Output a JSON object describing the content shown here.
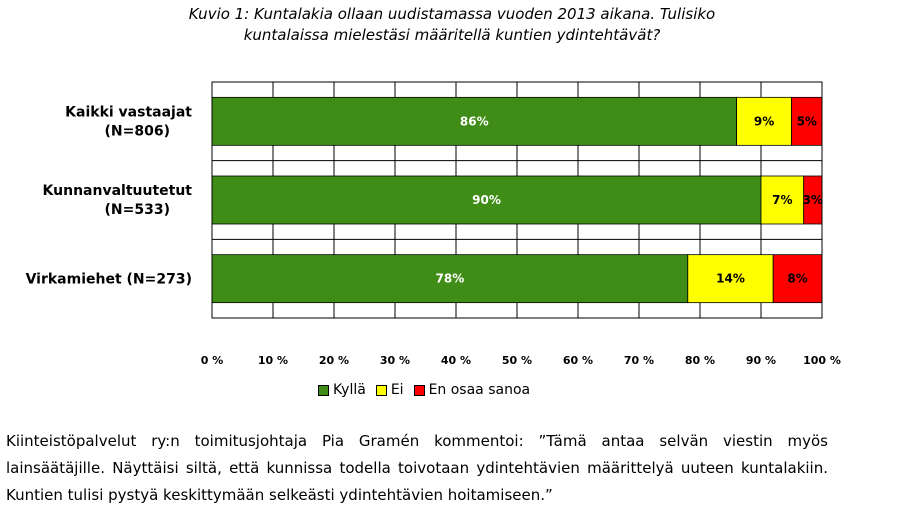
{
  "chart_data": {
    "type": "bar",
    "orientation": "horizontal",
    "stacked": true,
    "title_lines": [
      "Kuvio 1: Kuntalakia ollaan uudistamassa vuoden 2013 aikana. Tulisiko",
      "kuntalaissa mielestäsi määritellä kuntien ydintehtävät?"
    ],
    "categories": [
      {
        "line1": "Kaikki vastaajat",
        "line2": "(N=806)"
      },
      {
        "line1": "Kunnanvaltuutetut",
        "line2": "(N=533)"
      },
      {
        "line1": "Virkamiehet (N=273)",
        "line2": ""
      }
    ],
    "series": [
      {
        "name": "Kyllä",
        "color": "#3f8d17",
        "label_color": "#ffffff",
        "values": [
          86,
          90,
          78
        ],
        "labels": [
          "86%",
          "90%",
          "78%"
        ]
      },
      {
        "name": "Ei",
        "color": "#ffff00",
        "label_color": "#000000",
        "values": [
          9,
          7,
          14
        ],
        "labels": [
          "9%",
          "7%",
          "14%"
        ]
      },
      {
        "name": "En osaa sanoa",
        "color": "#ff0000",
        "label_color": "#000000",
        "values": [
          5,
          3,
          8
        ],
        "labels": [
          "5%",
          "3%",
          "8%"
        ]
      }
    ],
    "xlim": [
      0,
      100
    ],
    "xticks": [
      "0 %",
      "10 %",
      "20 %",
      "30 %",
      "40 %",
      "50 %",
      "60 %",
      "70 %",
      "80 %",
      "90 %",
      "100 %"
    ],
    "grid": true,
    "legend_position": "bottom"
  },
  "caption": "Kiinteistöpalvelut ry:n toimitusjohtaja Pia Gramén kommentoi: ”Tämä antaa selvän viestin myös lainsäätäjille. Näyttäisi siltä, että kunnissa todella toivotaan ydintehtävien määrittelyä uuteen kuntalakiin. Kuntien tulisi pystyä keskittymään selkeästi ydintehtävien hoitamiseen.”"
}
